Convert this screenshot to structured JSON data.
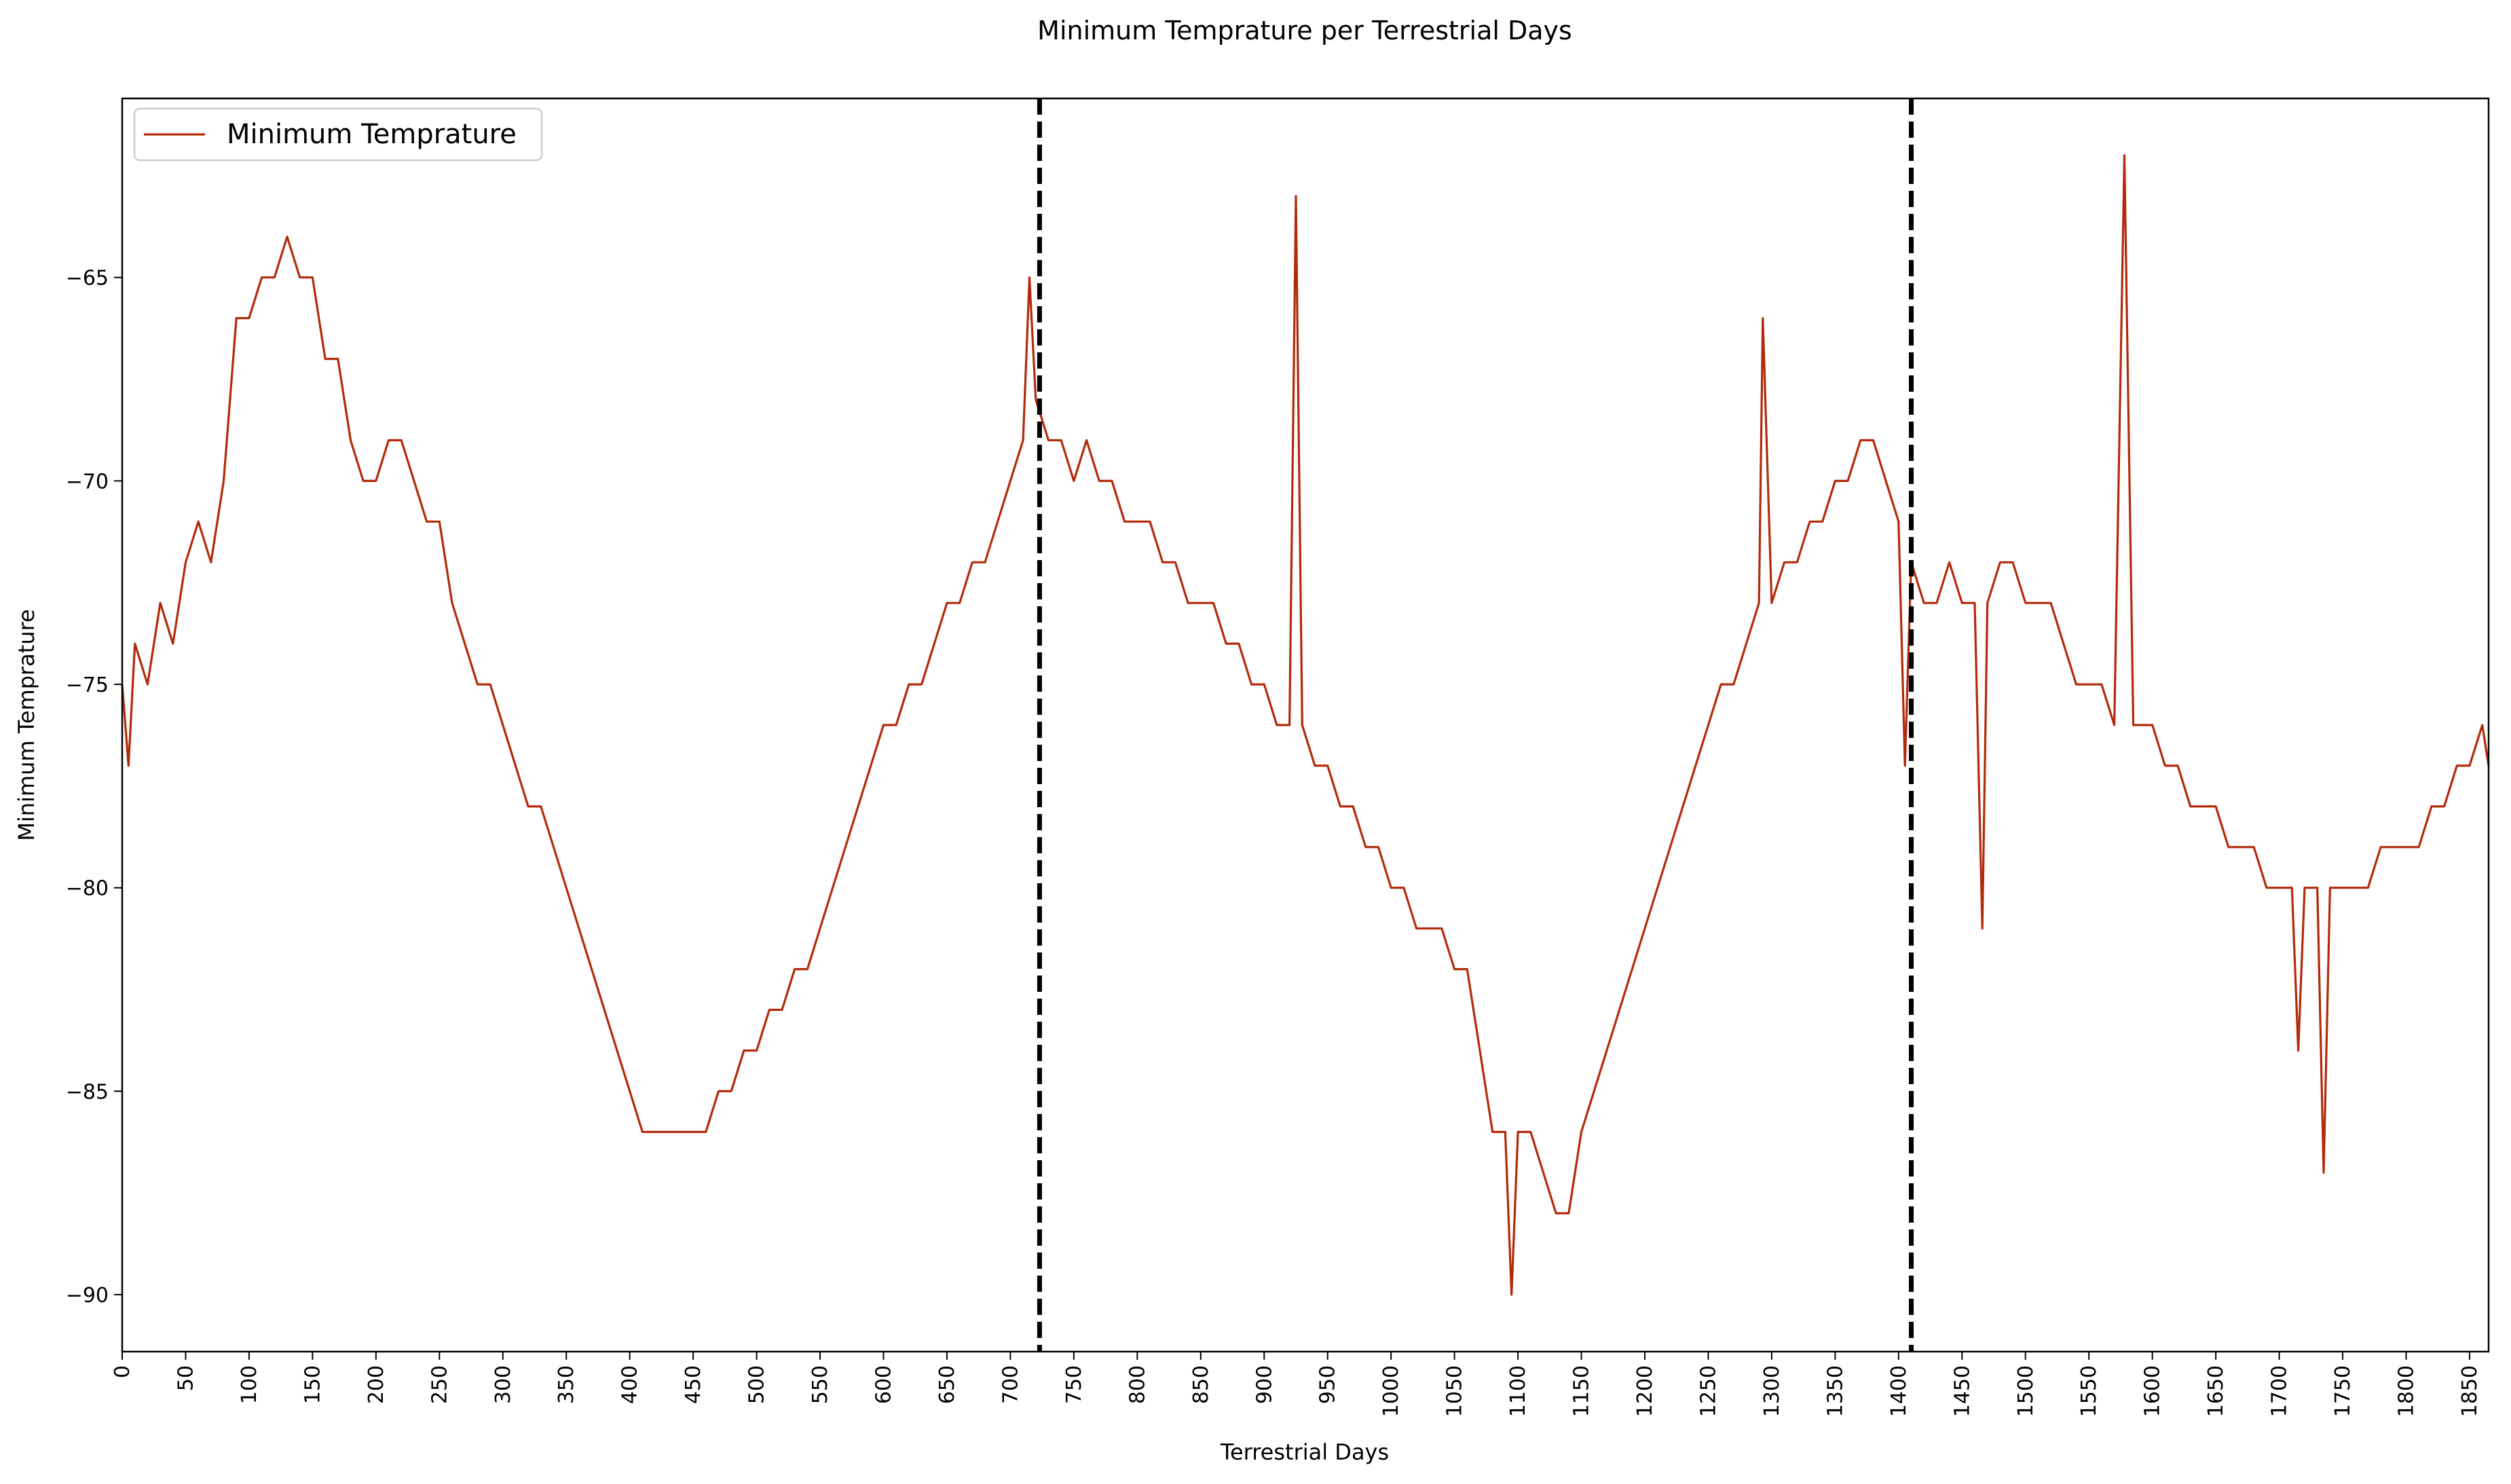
{
  "chart_data": {
    "type": "line",
    "title": "Minimum Temprature per Terrestrial Days",
    "xlabel": "Terrestrial Days",
    "ylabel": "Minimum Temprature",
    "xlim": [
      0,
      1865
    ],
    "ylim": [
      -91.4,
      -60.6
    ],
    "x_ticks": [
      0,
      50,
      100,
      150,
      200,
      250,
      300,
      350,
      400,
      450,
      500,
      550,
      600,
      650,
      700,
      750,
      800,
      850,
      900,
      950,
      1000,
      1050,
      1100,
      1150,
      1200,
      1250,
      1300,
      1350,
      1400,
      1450,
      1500,
      1550,
      1600,
      1650,
      1700,
      1750,
      1800,
      1850
    ],
    "y_ticks": [
      -90,
      -85,
      -80,
      -75,
      -70,
      -65
    ],
    "grid": false,
    "legend_position": "top-left",
    "vertical_markers": [
      {
        "x": 723,
        "style": "dashed",
        "color": "#000000"
      },
      {
        "x": 1410,
        "style": "dashed",
        "color": "#000000"
      }
    ],
    "series": [
      {
        "name": "Minimum Temprature",
        "color": "#b22a0a",
        "points": [
          [
            0,
            -75
          ],
          [
            5,
            -77
          ],
          [
            10,
            -74
          ],
          [
            20,
            -75
          ],
          [
            30,
            -73
          ],
          [
            40,
            -74
          ],
          [
            50,
            -72
          ],
          [
            60,
            -71
          ],
          [
            70,
            -72
          ],
          [
            80,
            -70
          ],
          [
            90,
            -66
          ],
          [
            100,
            -66
          ],
          [
            110,
            -65
          ],
          [
            120,
            -65
          ],
          [
            130,
            -64
          ],
          [
            140,
            -65
          ],
          [
            150,
            -65
          ],
          [
            160,
            -67
          ],
          [
            170,
            -67
          ],
          [
            180,
            -69
          ],
          [
            190,
            -70
          ],
          [
            200,
            -70
          ],
          [
            210,
            -69
          ],
          [
            220,
            -69
          ],
          [
            230,
            -70
          ],
          [
            240,
            -71
          ],
          [
            250,
            -71
          ],
          [
            260,
            -73
          ],
          [
            270,
            -74
          ],
          [
            280,
            -75
          ],
          [
            290,
            -75
          ],
          [
            300,
            -76
          ],
          [
            310,
            -77
          ],
          [
            320,
            -78
          ],
          [
            330,
            -78
          ],
          [
            340,
            -79
          ],
          [
            350,
            -80
          ],
          [
            360,
            -81
          ],
          [
            370,
            -82
          ],
          [
            380,
            -83
          ],
          [
            390,
            -84
          ],
          [
            400,
            -85
          ],
          [
            410,
            -86
          ],
          [
            420,
            -86
          ],
          [
            430,
            -86
          ],
          [
            440,
            -86
          ],
          [
            450,
            -86
          ],
          [
            460,
            -86
          ],
          [
            470,
            -85
          ],
          [
            480,
            -85
          ],
          [
            490,
            -84
          ],
          [
            500,
            -84
          ],
          [
            510,
            -83
          ],
          [
            520,
            -83
          ],
          [
            530,
            -82
          ],
          [
            540,
            -82
          ],
          [
            550,
            -81
          ],
          [
            560,
            -80
          ],
          [
            570,
            -79
          ],
          [
            580,
            -78
          ],
          [
            590,
            -77
          ],
          [
            600,
            -76
          ],
          [
            610,
            -76
          ],
          [
            620,
            -75
          ],
          [
            630,
            -75
          ],
          [
            640,
            -74
          ],
          [
            650,
            -73
          ],
          [
            660,
            -73
          ],
          [
            670,
            -72
          ],
          [
            680,
            -72
          ],
          [
            690,
            -71
          ],
          [
            700,
            -70
          ],
          [
            710,
            -69
          ],
          [
            715,
            -65
          ],
          [
            720,
            -68
          ],
          [
            730,
            -69
          ],
          [
            740,
            -69
          ],
          [
            750,
            -70
          ],
          [
            760,
            -69
          ],
          [
            770,
            -70
          ],
          [
            780,
            -70
          ],
          [
            790,
            -71
          ],
          [
            800,
            -71
          ],
          [
            810,
            -71
          ],
          [
            820,
            -72
          ],
          [
            830,
            -72
          ],
          [
            840,
            -73
          ],
          [
            850,
            -73
          ],
          [
            860,
            -73
          ],
          [
            870,
            -74
          ],
          [
            880,
            -74
          ],
          [
            890,
            -75
          ],
          [
            900,
            -75
          ],
          [
            910,
            -76
          ],
          [
            920,
            -76
          ],
          [
            925,
            -63
          ],
          [
            930,
            -76
          ],
          [
            940,
            -77
          ],
          [
            950,
            -77
          ],
          [
            960,
            -78
          ],
          [
            970,
            -78
          ],
          [
            980,
            -79
          ],
          [
            990,
            -79
          ],
          [
            1000,
            -80
          ],
          [
            1010,
            -80
          ],
          [
            1020,
            -81
          ],
          [
            1030,
            -81
          ],
          [
            1040,
            -81
          ],
          [
            1050,
            -82
          ],
          [
            1060,
            -82
          ],
          [
            1070,
            -84
          ],
          [
            1080,
            -86
          ],
          [
            1090,
            -86
          ],
          [
            1095,
            -90
          ],
          [
            1100,
            -86
          ],
          [
            1110,
            -86
          ],
          [
            1120,
            -87
          ],
          [
            1130,
            -88
          ],
          [
            1140,
            -88
          ],
          [
            1150,
            -86
          ],
          [
            1160,
            -85
          ],
          [
            1170,
            -84
          ],
          [
            1180,
            -83
          ],
          [
            1190,
            -82
          ],
          [
            1200,
            -81
          ],
          [
            1210,
            -80
          ],
          [
            1220,
            -79
          ],
          [
            1230,
            -78
          ],
          [
            1240,
            -77
          ],
          [
            1250,
            -76
          ],
          [
            1260,
            -75
          ],
          [
            1270,
            -75
          ],
          [
            1280,
            -74
          ],
          [
            1290,
            -73
          ],
          [
            1293,
            -66
          ],
          [
            1300,
            -73
          ],
          [
            1310,
            -72
          ],
          [
            1320,
            -72
          ],
          [
            1330,
            -71
          ],
          [
            1340,
            -71
          ],
          [
            1350,
            -70
          ],
          [
            1360,
            -70
          ],
          [
            1370,
            -69
          ],
          [
            1380,
            -69
          ],
          [
            1390,
            -70
          ],
          [
            1400,
            -71
          ],
          [
            1405,
            -77
          ],
          [
            1410,
            -72
          ],
          [
            1420,
            -73
          ],
          [
            1430,
            -73
          ],
          [
            1440,
            -72
          ],
          [
            1450,
            -73
          ],
          [
            1460,
            -73
          ],
          [
            1466,
            -81
          ],
          [
            1470,
            -73
          ],
          [
            1480,
            -72
          ],
          [
            1490,
            -72
          ],
          [
            1500,
            -73
          ],
          [
            1510,
            -73
          ],
          [
            1520,
            -73
          ],
          [
            1530,
            -74
          ],
          [
            1540,
            -75
          ],
          [
            1550,
            -75
          ],
          [
            1560,
            -75
          ],
          [
            1570,
            -76
          ],
          [
            1578,
            -62
          ],
          [
            1585,
            -76
          ],
          [
            1590,
            -76
          ],
          [
            1600,
            -76
          ],
          [
            1610,
            -77
          ],
          [
            1620,
            -77
          ],
          [
            1630,
            -78
          ],
          [
            1640,
            -78
          ],
          [
            1650,
            -78
          ],
          [
            1660,
            -79
          ],
          [
            1670,
            -79
          ],
          [
            1680,
            -79
          ],
          [
            1690,
            -80
          ],
          [
            1700,
            -80
          ],
          [
            1710,
            -80
          ],
          [
            1715,
            -84
          ],
          [
            1720,
            -80
          ],
          [
            1730,
            -80
          ],
          [
            1735,
            -87
          ],
          [
            1740,
            -80
          ],
          [
            1750,
            -80
          ],
          [
            1760,
            -80
          ],
          [
            1770,
            -80
          ],
          [
            1780,
            -79
          ],
          [
            1790,
            -79
          ],
          [
            1800,
            -79
          ],
          [
            1810,
            -79
          ],
          [
            1820,
            -78
          ],
          [
            1830,
            -78
          ],
          [
            1840,
            -77
          ],
          [
            1850,
            -77
          ],
          [
            1860,
            -76
          ],
          [
            1865,
            -77
          ]
        ]
      }
    ]
  }
}
